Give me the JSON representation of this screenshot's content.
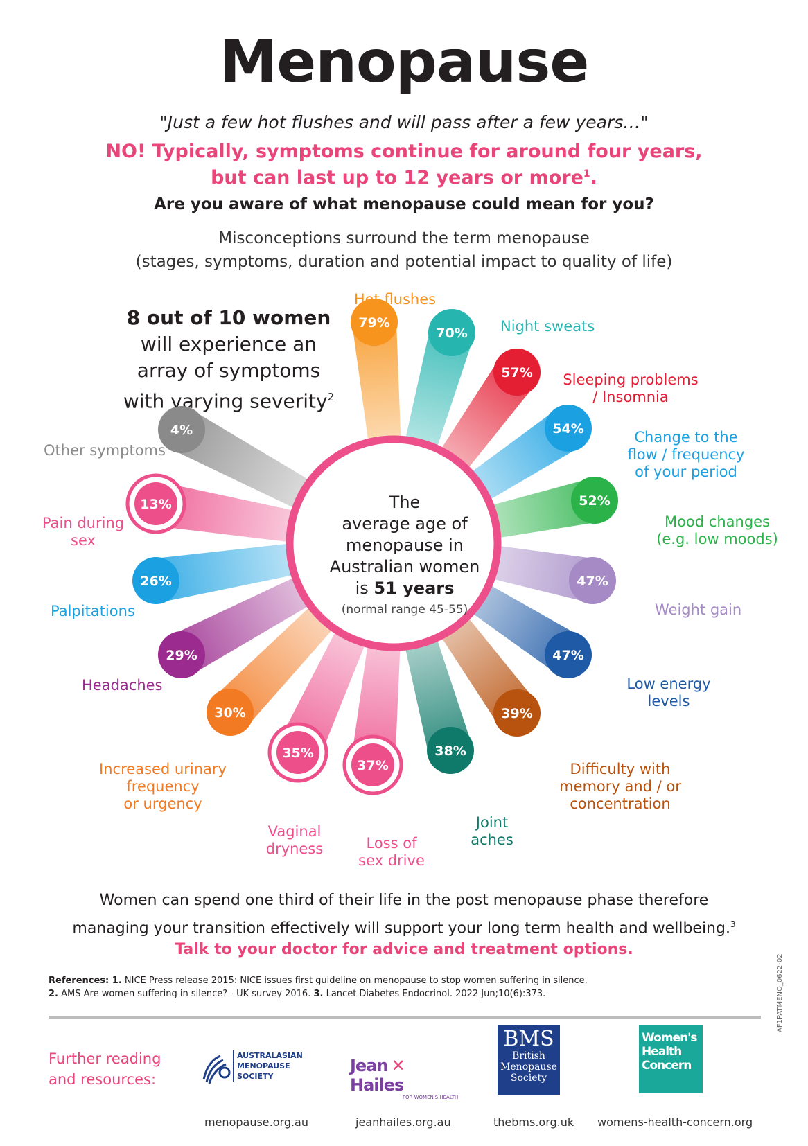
{
  "title": "Menopause",
  "quote": "\"Just a few hot flushes and will pass after a few years…\"",
  "no_line1": "NO! Typically, symptoms continue for around four years,",
  "no_line2": "but can last up to 12 years or more",
  "no_sup": "1",
  "aware": "Are you aware of what menopause could mean for you?",
  "misc_line1": "Misconceptions surround the term menopause",
  "misc_line2": "(stages, symptoms, duration and potential impact to quality of life)",
  "eight": {
    "bold": "8 out of 10 women",
    "line2": "will experience an",
    "line3": "array of symptoms",
    "line4": "with varying severity",
    "sup": "2"
  },
  "center": {
    "l1": "The",
    "l2": "average age of",
    "l3": "menopause in",
    "l4": "Australian women",
    "l5a": "is ",
    "l5b": "51 years",
    "l6": "(normal range 45-55)"
  },
  "chart_data": {
    "type": "radial",
    "title": "Menopause",
    "unit": "%",
    "categories": [
      "Hot flushes",
      "Night sweats",
      "Sleeping problems / Insomnia",
      "Change to the flow / frequency of your period",
      "Mood changes (e.g. low moods)",
      "Weight gain",
      "Low energy levels",
      "Difficulty with memory and / or concentration",
      "Joint aches",
      "Loss of sex drive",
      "Vaginal dryness",
      "Increased urinary frequency or urgency",
      "Headaches",
      "Palpitations",
      "Pain during sex",
      "Other symptoms"
    ],
    "values": [
      79,
      70,
      57,
      54,
      52,
      47,
      47,
      39,
      38,
      37,
      35,
      30,
      29,
      26,
      13,
      4
    ],
    "labels": [
      "79%",
      "70%",
      "57%",
      "54%",
      "52%",
      "47%",
      "47%",
      "39%",
      "38%",
      "37%",
      "35%",
      "30%",
      "29%",
      "26%",
      "13%",
      "4%"
    ],
    "colors": [
      "#f7941d",
      "#27b5b0",
      "#e41e33",
      "#1ba1e2",
      "#2bb34a",
      "#a58ac6",
      "#1f5aa6",
      "#b8520f",
      "#0f7a6a",
      "#ec4f8a",
      "#ec4f8a",
      "#f27a22",
      "#9b2b8e",
      "#1ba1e2",
      "#ec4f8a",
      "#8a8a8a"
    ]
  },
  "labels": {
    "hot": [
      "Hot flushes"
    ],
    "night": [
      "Night sweats"
    ],
    "sleep": [
      "Sleeping problems",
      "/ Insomnia"
    ],
    "period": [
      "Change to the",
      "flow / frequency",
      "of your period"
    ],
    "mood": [
      "Mood changes",
      "(e.g. low moods)"
    ],
    "weight": [
      "Weight gain"
    ],
    "energy": [
      "Low energy",
      "levels"
    ],
    "memory": [
      "Difficulty with",
      "memory and / or",
      "concentration"
    ],
    "joint": [
      "Joint",
      "aches"
    ],
    "sexdrive": [
      "Loss of",
      "sex drive"
    ],
    "vaginal": [
      "Vaginal",
      "dryness"
    ],
    "urinary": [
      "Increased urinary",
      "frequency",
      "or urgency"
    ],
    "headaches": [
      "Headaches"
    ],
    "palp": [
      "Palpitations"
    ],
    "pain": [
      "Pain during",
      "sex"
    ],
    "other": [
      "Other symptoms"
    ]
  },
  "bottom_line1": "Women can spend one third of their life in the post menopause phase therefore",
  "bottom_line2": "managing your transition effectively will support your long term health and wellbeing.",
  "bottom_sup": "3",
  "talk": "Talk to your doctor for advice and treatment options.",
  "refs_line1_bold": "References: 1.",
  "refs_line1": " NICE Press release 2015: NICE issues first guideline on menopause to stop women suffering in silence.",
  "refs_line2_b1": "2.",
  "refs_line2_a": " AMS Are women suffering in silence? - UK survey 2016. ",
  "refs_line2_b2": "3.",
  "refs_line2_b": " Lancet Diabetes Endocrinol. 2022 Jun;10(6):373.",
  "further_line1": "Further reading",
  "further_line2": "and resources:",
  "orgs": {
    "ams_logo": [
      "Australasian",
      "Menopause",
      "Society"
    ],
    "ams_url": "menopause.org.au",
    "jh_logo_a": "Jean",
    "jh_logo_b": "Hailes",
    "jh_logo_sub": "FOR WOMEN'S HEALTH",
    "jh_url": "jeanhailes.org.au",
    "bms_logo": [
      "BMS",
      "British",
      "Menopause",
      "Society"
    ],
    "bms_url": "thebms.org.uk",
    "whc_logo": [
      "Women's",
      "Health",
      "Concern"
    ],
    "whc_url": "womens-health-concern.org"
  },
  "code": "AF1PATMENO_0622-02"
}
